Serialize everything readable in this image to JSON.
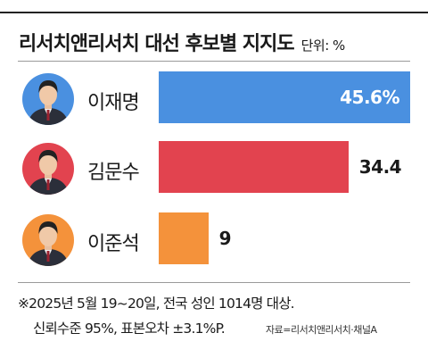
{
  "header": {
    "title": "리서치앤리서치 대선 후보별 지지도",
    "unit": "단위: %"
  },
  "chart_data": {
    "type": "bar",
    "orientation": "horizontal",
    "title": "리서치앤리서치 대선 후보별 지지도",
    "unit": "%",
    "categories": [
      "이재명",
      "김문수",
      "이준석"
    ],
    "values": [
      45.6,
      34.4,
      9
    ],
    "value_labels": [
      "45.6%",
      "34.4",
      "9"
    ],
    "xlim": [
      0,
      45.6
    ],
    "grid": false,
    "colors": [
      "#4a90e0",
      "#e2434f",
      "#f4923b"
    ],
    "avatar_colors": [
      "#4a90e0",
      "#e2434f",
      "#f4923b"
    ]
  },
  "footer": {
    "note_line1": "※2025년 5월 19~20일, 전국 성인 1014명 대상.",
    "note_line2": "신뢰수준 95%, 표본오차 ±3.1%P.",
    "source": "자료=리서치앤리서치·채널A"
  }
}
